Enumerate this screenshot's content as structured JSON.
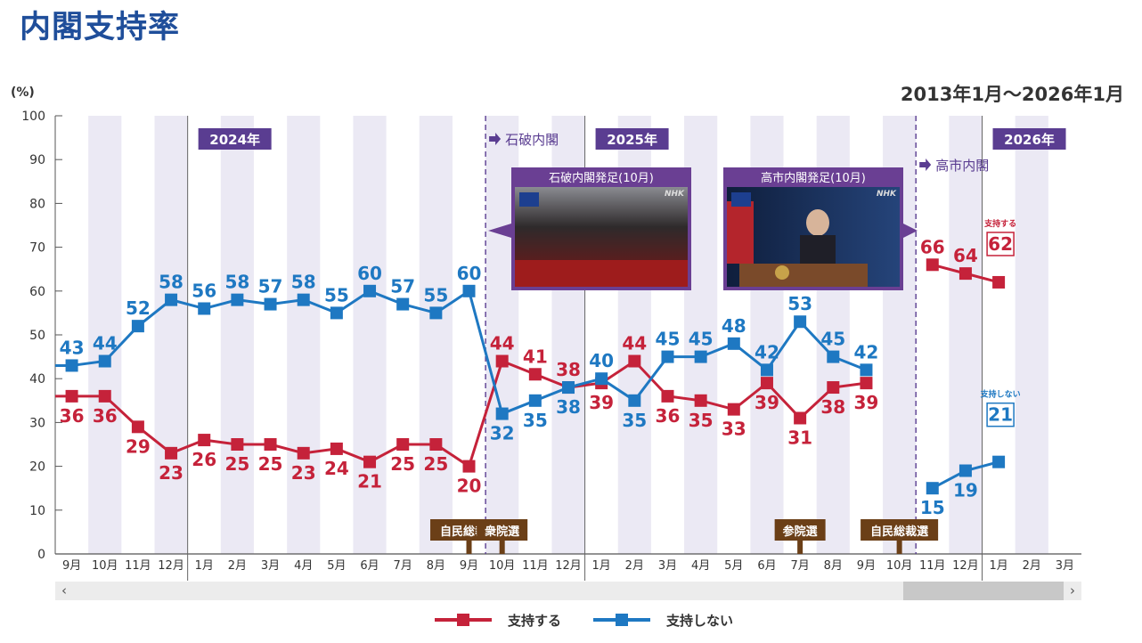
{
  "page": {
    "title": "内閣支持率",
    "period": "2013年1月〜2026年1月",
    "y_unit": "(%)"
  },
  "colors": {
    "support": "#c5223a",
    "nonsupport": "#1e78c2",
    "band": "#ebe9f4",
    "year_label_bg": "#5a3d91",
    "event_label_bg": "#6b3f17",
    "cabinet_marker": "#5a3d91"
  },
  "chart_data": {
    "type": "line",
    "ylim": [
      0,
      100
    ],
    "y_ticks": [
      0,
      10,
      20,
      30,
      40,
      50,
      60,
      70,
      80,
      90,
      100
    ],
    "categories": [
      "9月",
      "10月",
      "11月",
      "12月",
      "1月",
      "2月",
      "3月",
      "4月",
      "5月",
      "6月",
      "7月",
      "8月",
      "9月",
      "10月",
      "11月",
      "12月",
      "1月",
      "2月",
      "3月",
      "4月",
      "5月",
      "6月",
      "7月",
      "8月",
      "9月",
      "10月",
      "11月",
      "12月",
      "1月",
      "2月",
      "3月"
    ],
    "series": [
      {
        "name": "支持する",
        "color": "#c5223a",
        "values": [
          36,
          36,
          29,
          23,
          26,
          25,
          25,
          23,
          24,
          21,
          25,
          25,
          20,
          44,
          41,
          38,
          39,
          44,
          36,
          35,
          33,
          39,
          31,
          38,
          39,
          null,
          66,
          64,
          62,
          null,
          null
        ]
      },
      {
        "name": "支持しない",
        "color": "#1e78c2",
        "values": [
          43,
          44,
          52,
          58,
          56,
          58,
          57,
          58,
          55,
          60,
          57,
          55,
          60,
          32,
          35,
          38,
          40,
          35,
          45,
          45,
          48,
          42,
          53,
          45,
          42,
          null,
          15,
          19,
          21,
          null,
          null
        ]
      }
    ],
    "year_labels": [
      {
        "label": "2024年",
        "index": 4
      },
      {
        "label": "2025年",
        "index": 16
      },
      {
        "label": "2026年",
        "index": 28
      }
    ],
    "cabinet_markers": [
      {
        "label": "石破内閣",
        "after_index": 12
      },
      {
        "label": "高市内閣",
        "after_index": 25
      }
    ],
    "events": [
      {
        "label": "自民総裁選",
        "index": 12
      },
      {
        "label": "衆院選",
        "index": 13
      },
      {
        "label": "参院選",
        "index": 22
      },
      {
        "label": "自民総裁選",
        "index": 25
      }
    ],
    "photos": [
      {
        "caption": "石破内閣発足(10月)",
        "brand": "NHK",
        "badge": "NHK NEWS"
      },
      {
        "caption": "高市内閣発足(10月)",
        "brand": "NHK",
        "badge": "NHK NEWS"
      }
    ],
    "latest_support_label": "支持する",
    "latest_nonsupport_label": "支持しない"
  },
  "scrollbar": {
    "left_arrow": "‹",
    "right_arrow": "›"
  },
  "legend": {
    "support_label": "支持する",
    "nonsupport_label": "支持しない"
  }
}
